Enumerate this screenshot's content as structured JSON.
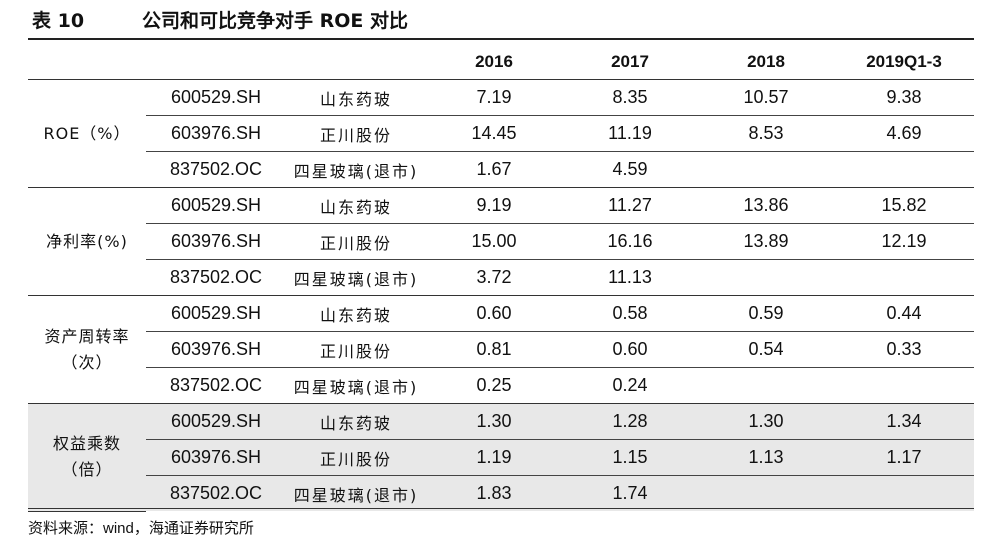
{
  "title": {
    "label": "表 10",
    "text": "公司和可比竞争对手 ROE 对比"
  },
  "columns": [
    "2016",
    "2017",
    "2018",
    "2019Q1-3"
  ],
  "groups": [
    {
      "metric_line1": "ROE（%）",
      "metric_line2": "",
      "rows": [
        {
          "code": "600529.SH",
          "name": "山东药玻",
          "values": [
            "7.19",
            "8.35",
            "10.57",
            "9.38"
          ]
        },
        {
          "code": "603976.SH",
          "name": "正川股份",
          "values": [
            "14.45",
            "11.19",
            "8.53",
            "4.69"
          ]
        },
        {
          "code": "837502.OC",
          "name": "四星玻璃(退市)",
          "values": [
            "1.67",
            "4.59",
            "",
            ""
          ]
        }
      ]
    },
    {
      "metric_line1": "净利率(%)",
      "metric_line2": "",
      "rows": [
        {
          "code": "600529.SH",
          "name": "山东药玻",
          "values": [
            "9.19",
            "11.27",
            "13.86",
            "15.82"
          ]
        },
        {
          "code": "603976.SH",
          "name": "正川股份",
          "values": [
            "15.00",
            "16.16",
            "13.89",
            "12.19"
          ]
        },
        {
          "code": "837502.OC",
          "name": "四星玻璃(退市)",
          "values": [
            "3.72",
            "11.13",
            "",
            ""
          ]
        }
      ]
    },
    {
      "metric_line1": "资产周转率",
      "metric_line2": "（次）",
      "rows": [
        {
          "code": "600529.SH",
          "name": "山东药玻",
          "values": [
            "0.60",
            "0.58",
            "0.59",
            "0.44"
          ]
        },
        {
          "code": "603976.SH",
          "name": "正川股份",
          "values": [
            "0.81",
            "0.60",
            "0.54",
            "0.33"
          ]
        },
        {
          "code": "837502.OC",
          "name": "四星玻璃(退市)",
          "values": [
            "0.25",
            "0.24",
            "",
            ""
          ]
        }
      ]
    },
    {
      "metric_line1": "权益乘数",
      "metric_line2": "（倍）",
      "rows": [
        {
          "code": "600529.SH",
          "name": "山东药玻",
          "values": [
            "1.30",
            "1.28",
            "1.30",
            "1.34"
          ]
        },
        {
          "code": "603976.SH",
          "name": "正川股份",
          "values": [
            "1.19",
            "1.15",
            "1.13",
            "1.17"
          ]
        },
        {
          "code": "837502.OC",
          "name": "四星玻璃(退市)",
          "values": [
            "1.83",
            "1.74",
            "",
            ""
          ]
        }
      ]
    }
  ],
  "footnote": {
    "prefix": "资料来源：",
    "latin": "wind",
    "suffix": "，海通证券研究所"
  }
}
